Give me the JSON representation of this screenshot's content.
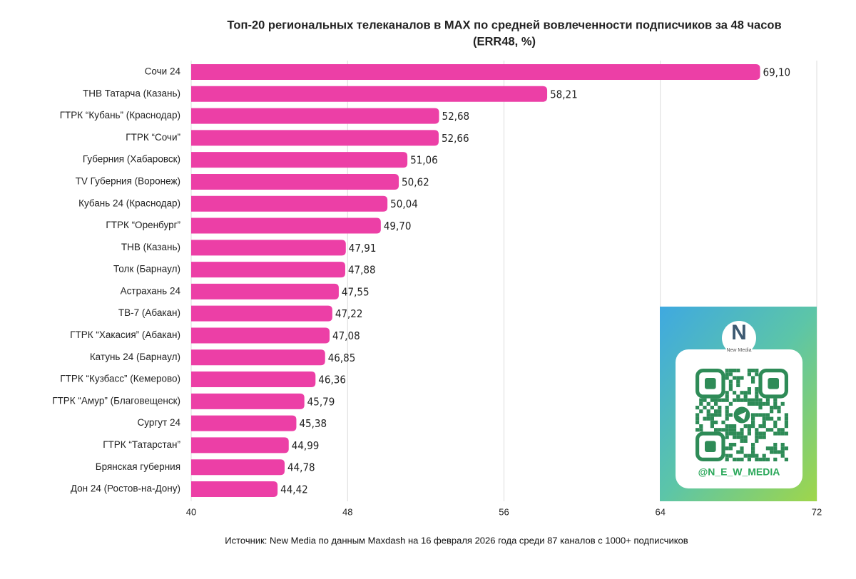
{
  "chart_data": {
    "type": "barh",
    "title": "Топ-20 региональных телеканалов в MAX по средней вовлеченности подписчиков за 48 часов",
    "subtitle": "(ERR48, %)",
    "categories": [
      "Сочи 24",
      "ТНВ Татарча (Казань)",
      "ГТРК “Кубань” (Краснодар)",
      "ГТРК “Сочи”",
      "Губерния (Хабаровск)",
      "TV Губерния (Воронеж)",
      "Кубань 24 (Краснодар)",
      "ГТРК “Оренбург”",
      "ТНВ (Казань)",
      "Толк (Барнаул)",
      "Астрахань 24",
      "ТВ-7 (Абакан)",
      "ГТРК “Хакасия” (Абакан)",
      "Катунь 24 (Барнаул)",
      "ГТРК “Кузбасс” (Кемерово)",
      "ГТРК “Амур” (Благовещенск)",
      "Сургут 24",
      "ГТРК “Татарстан”",
      "Брянская губерния",
      "Дон 24 (Ростов-на-Дону)"
    ],
    "values": [
      69.1,
      58.21,
      52.68,
      52.66,
      51.06,
      50.62,
      50.04,
      49.7,
      47.91,
      47.88,
      47.55,
      47.22,
      47.08,
      46.85,
      46.36,
      45.79,
      45.38,
      44.99,
      44.78,
      44.42
    ],
    "value_labels": [
      "69,10",
      "58,21",
      "52,68",
      "52,66",
      "51,06",
      "50,62",
      "50,04",
      "49,70",
      "47,91",
      "47,88",
      "47,55",
      "47,22",
      "47,08",
      "46,85",
      "46,36",
      "45,79",
      "45,38",
      "44,99",
      "44,78",
      "44,42"
    ],
    "color": "#ec3fa6",
    "xlim": [
      40,
      72
    ],
    "xticks": [
      40,
      48,
      56,
      64,
      72
    ],
    "grid": true,
    "source": "Источник: New Media по данным Maxdash на 16 февраля 2026 года среди 87 каналов с 1000+ подписчиков"
  },
  "qr_card": {
    "logo": "N",
    "brand": "New Media",
    "handle": "@N_E_W_MEDIA"
  }
}
